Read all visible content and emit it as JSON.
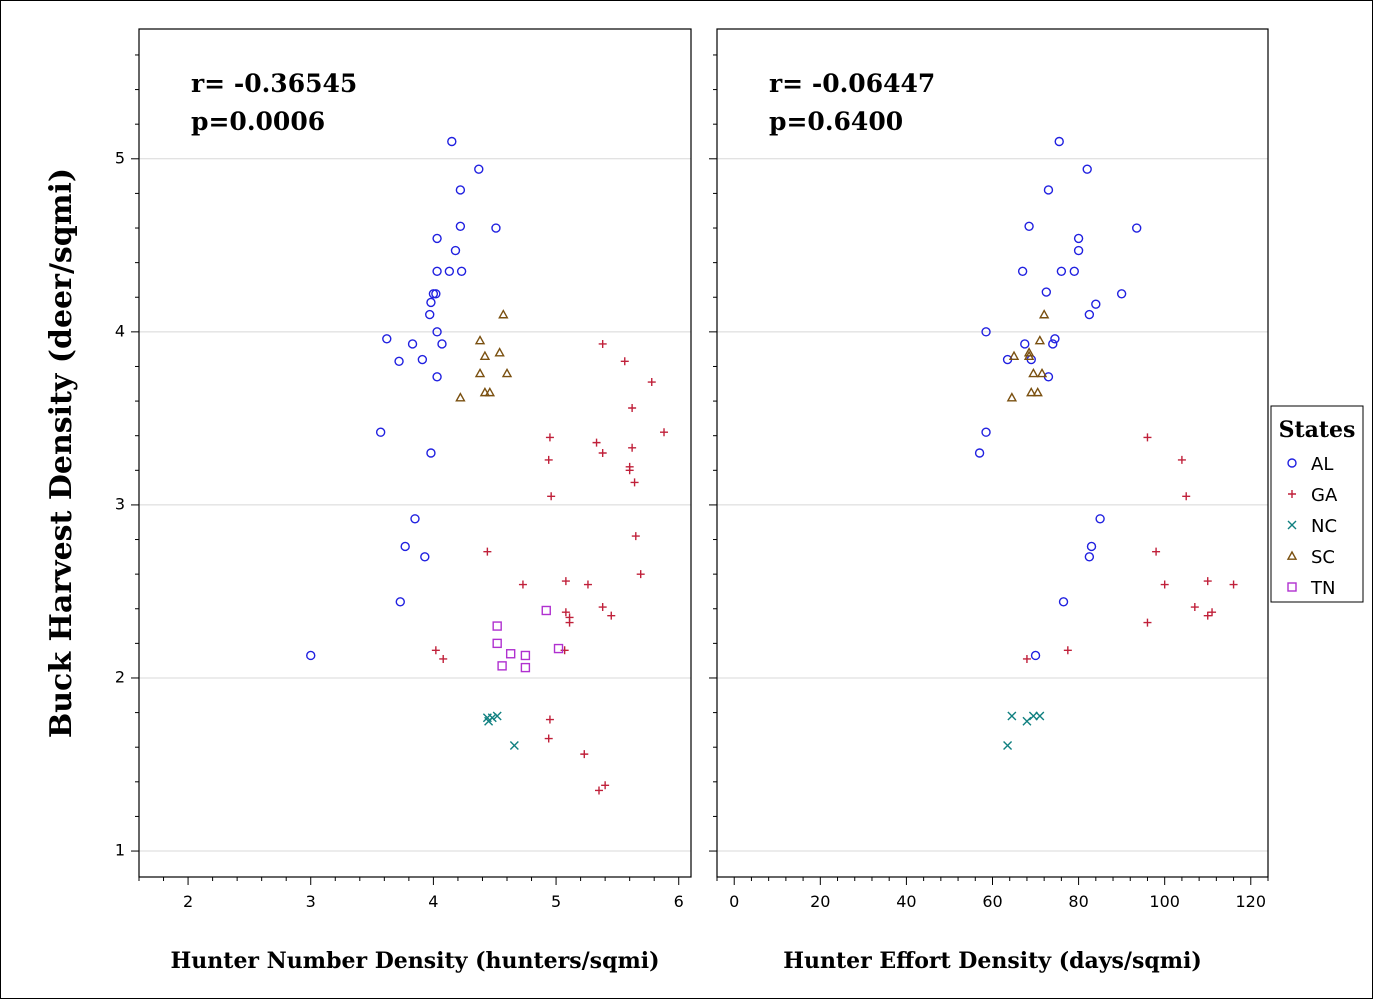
{
  "y_axis_label": "Buck Harvest Density (deer/sqmi)",
  "legend": {
    "title": "States",
    "items": [
      {
        "label": "AL",
        "color": "#2020e0",
        "marker": "circle"
      },
      {
        "label": "GA",
        "color": "#c0203a",
        "marker": "plus"
      },
      {
        "label": "NC",
        "color": "#108080",
        "marker": "x"
      },
      {
        "label": "SC",
        "color": "#7a5010",
        "marker": "triangle"
      },
      {
        "label": "TN",
        "color": "#b030d0",
        "marker": "square"
      }
    ]
  },
  "chart_data": [
    {
      "type": "scatter",
      "xlabel": "Hunter Number Density (hunters/sqmi)",
      "ylabel": "Buck Harvest Density (deer/sqmi)",
      "annotation_r": "r= -0.36545",
      "annotation_p": "p=0.0006",
      "xlim": [
        1.6,
        6.1
      ],
      "ylim": [
        0.85,
        5.75
      ],
      "xticks": [
        2,
        3,
        4,
        5,
        6
      ],
      "yticks": [
        1,
        2,
        3,
        4,
        5
      ],
      "grid": "horizontal",
      "series": [
        {
          "name": "AL",
          "points": [
            [
              4.15,
              5.1
            ],
            [
              4.37,
              4.94
            ],
            [
              4.22,
              4.82
            ],
            [
              4.22,
              4.61
            ],
            [
              4.51,
              4.6
            ],
            [
              4.03,
              4.54
            ],
            [
              4.18,
              4.47
            ],
            [
              4.03,
              4.35
            ],
            [
              4.13,
              4.35
            ],
            [
              4.23,
              4.35
            ],
            [
              3.98,
              4.17
            ],
            [
              3.97,
              4.1
            ],
            [
              4.02,
              4.22
            ],
            [
              4.0,
              4.22
            ],
            [
              4.03,
              4.0
            ],
            [
              3.62,
              3.96
            ],
            [
              3.83,
              3.93
            ],
            [
              4.07,
              3.93
            ],
            [
              3.72,
              3.83
            ],
            [
              3.91,
              3.84
            ],
            [
              4.03,
              3.74
            ],
            [
              3.57,
              3.42
            ],
            [
              3.98,
              3.3
            ],
            [
              3.85,
              2.92
            ],
            [
              3.77,
              2.76
            ],
            [
              3.93,
              2.7
            ],
            [
              3.73,
              2.44
            ],
            [
              3.0,
              2.13
            ]
          ]
        },
        {
          "name": "GA",
          "points": [
            [
              5.38,
              3.93
            ],
            [
              5.56,
              3.83
            ],
            [
              5.78,
              3.71
            ],
            [
              5.62,
              3.56
            ],
            [
              5.88,
              3.42
            ],
            [
              4.95,
              3.39
            ],
            [
              5.33,
              3.36
            ],
            [
              5.62,
              3.33
            ],
            [
              5.38,
              3.3
            ],
            [
              5.6,
              3.22
            ],
            [
              5.6,
              3.2
            ],
            [
              4.94,
              3.26
            ],
            [
              5.64,
              3.13
            ],
            [
              4.96,
              3.05
            ],
            [
              5.65,
              2.82
            ],
            [
              4.44,
              2.73
            ],
            [
              5.69,
              2.6
            ],
            [
              5.08,
              2.56
            ],
            [
              5.26,
              2.54
            ],
            [
              4.73,
              2.54
            ],
            [
              5.38,
              2.41
            ],
            [
              5.08,
              2.38
            ],
            [
              5.11,
              2.35
            ],
            [
              5.45,
              2.36
            ],
            [
              5.11,
              2.32
            ],
            [
              4.02,
              2.16
            ],
            [
              4.08,
              2.11
            ],
            [
              5.07,
              2.16
            ],
            [
              4.95,
              1.76
            ],
            [
              4.94,
              1.65
            ],
            [
              5.23,
              1.56
            ],
            [
              5.4,
              1.38
            ],
            [
              5.35,
              1.35
            ]
          ]
        },
        {
          "name": "NC",
          "points": [
            [
              4.44,
              1.77
            ],
            [
              4.48,
              1.77
            ],
            [
              4.52,
              1.78
            ],
            [
              4.45,
              1.75
            ],
            [
              4.66,
              1.61
            ]
          ]
        },
        {
          "name": "SC",
          "points": [
            [
              4.57,
              4.1
            ],
            [
              4.38,
              3.95
            ],
            [
              4.54,
              3.88
            ],
            [
              4.42,
              3.86
            ],
            [
              4.38,
              3.76
            ],
            [
              4.6,
              3.76
            ],
            [
              4.42,
              3.65
            ],
            [
              4.46,
              3.65
            ],
            [
              4.22,
              3.62
            ]
          ]
        },
        {
          "name": "TN",
          "points": [
            [
              4.92,
              2.39
            ],
            [
              4.52,
              2.3
            ],
            [
              4.52,
              2.2
            ],
            [
              4.63,
              2.14
            ],
            [
              4.75,
              2.13
            ],
            [
              5.02,
              2.17
            ],
            [
              4.56,
              2.07
            ],
            [
              4.75,
              2.06
            ]
          ]
        }
      ]
    },
    {
      "type": "scatter",
      "xlabel": "Hunter Effort Density (days/sqmi)",
      "ylabel": "",
      "annotation_r": "r= -0.06447",
      "annotation_p": "p=0.6400",
      "xlim": [
        -4,
        124
      ],
      "ylim": [
        0.85,
        5.75
      ],
      "xticks": [
        0,
        20,
        40,
        60,
        80,
        100,
        120
      ],
      "yticks": [
        1,
        2,
        3,
        4,
        5
      ],
      "grid": "horizontal",
      "series": [
        {
          "name": "AL",
          "points": [
            [
              75.5,
              5.1
            ],
            [
              82,
              4.94
            ],
            [
              73,
              4.82
            ],
            [
              68.5,
              4.61
            ],
            [
              93.5,
              4.6
            ],
            [
              80,
              4.54
            ],
            [
              80,
              4.47
            ],
            [
              67,
              4.35
            ],
            [
              76,
              4.35
            ],
            [
              79,
              4.35
            ],
            [
              72.5,
              4.23
            ],
            [
              90,
              4.22
            ],
            [
              84,
              4.16
            ],
            [
              82.5,
              4.1
            ],
            [
              58.5,
              4.0
            ],
            [
              74.5,
              3.96
            ],
            [
              67.5,
              3.93
            ],
            [
              74,
              3.93
            ],
            [
              63.5,
              3.84
            ],
            [
              69,
              3.84
            ],
            [
              73,
              3.74
            ],
            [
              58.5,
              3.42
            ],
            [
              57,
              3.3
            ],
            [
              85,
              2.92
            ],
            [
              83,
              2.76
            ],
            [
              82.5,
              2.7
            ],
            [
              76.5,
              2.44
            ],
            [
              70,
              2.13
            ]
          ]
        },
        {
          "name": "GA",
          "points": [
            [
              96,
              3.39
            ],
            [
              104,
              3.26
            ],
            [
              105,
              3.05
            ],
            [
              98,
              2.73
            ],
            [
              110,
              2.56
            ],
            [
              116,
              2.54
            ],
            [
              100,
              2.54
            ],
            [
              107,
              2.41
            ],
            [
              111,
              2.38
            ],
            [
              110,
              2.36
            ],
            [
              96,
              2.32
            ],
            [
              68,
              2.11
            ],
            [
              77.5,
              2.16
            ]
          ]
        },
        {
          "name": "NC",
          "points": [
            [
              64.5,
              1.78
            ],
            [
              68,
              1.75
            ],
            [
              69.5,
              1.78
            ],
            [
              71,
              1.78
            ],
            [
              63.5,
              1.61
            ]
          ]
        },
        {
          "name": "SC",
          "points": [
            [
              72,
              4.1
            ],
            [
              71,
              3.95
            ],
            [
              68.5,
              3.88
            ],
            [
              65,
              3.86
            ],
            [
              68.5,
              3.86
            ],
            [
              69.5,
              3.76
            ],
            [
              71.5,
              3.76
            ],
            [
              69,
              3.65
            ],
            [
              70.5,
              3.65
            ],
            [
              64.5,
              3.62
            ]
          ]
        }
      ]
    }
  ]
}
